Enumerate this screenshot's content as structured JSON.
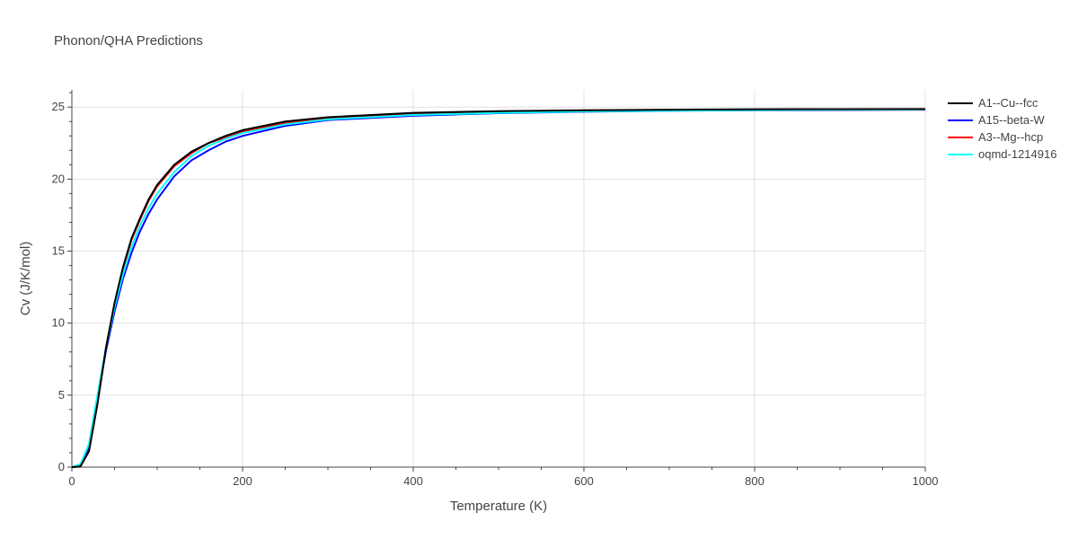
{
  "chart_data": {
    "type": "line",
    "title": "Phonon/QHA Predictions",
    "xlabel": "Temperature (K)",
    "ylabel": "Cv (J/K/mol)",
    "xlim": [
      0,
      1000
    ],
    "ylim": [
      0,
      26.2
    ],
    "xticks": [
      0,
      200,
      400,
      600,
      800,
      1000
    ],
    "yticks": [
      0,
      5,
      10,
      15,
      20,
      25
    ],
    "grid": true,
    "legend_position": "top-right",
    "series": [
      {
        "name": "A1--Cu--fcc",
        "color": "#000000",
        "x": [
          0,
          10,
          20,
          30,
          40,
          50,
          60,
          70,
          80,
          90,
          100,
          120,
          140,
          160,
          180,
          200,
          250,
          300,
          400,
          500,
          600,
          700,
          800,
          900,
          1000
        ],
        "y": [
          0,
          0.05,
          1.1,
          4.4,
          8.3,
          11.4,
          13.9,
          15.9,
          17.3,
          18.6,
          19.6,
          21.0,
          21.9,
          22.5,
          23.0,
          23.4,
          24.0,
          24.3,
          24.6,
          24.72,
          24.78,
          24.82,
          24.85,
          24.86,
          24.87
        ]
      },
      {
        "name": "A15--beta-W",
        "color": "#0000ff",
        "x": [
          0,
          10,
          20,
          30,
          40,
          50,
          60,
          70,
          80,
          90,
          100,
          120,
          140,
          160,
          180,
          200,
          250,
          300,
          400,
          500,
          600,
          700,
          800,
          900,
          1000
        ],
        "y": [
          0,
          0.1,
          1.3,
          4.7,
          8.1,
          10.8,
          13.1,
          14.9,
          16.4,
          17.6,
          18.6,
          20.2,
          21.3,
          22.0,
          22.6,
          23.0,
          23.7,
          24.1,
          24.4,
          24.58,
          24.68,
          24.74,
          24.78,
          24.8,
          24.82
        ]
      },
      {
        "name": "A3--Mg--hcp",
        "color": "#ff0000",
        "x": [
          0,
          10,
          20,
          30,
          40,
          50,
          60,
          70,
          80,
          90,
          100,
          120,
          140,
          160,
          180,
          200,
          250,
          300,
          400,
          500,
          600,
          700,
          800,
          900,
          1000
        ],
        "y": [
          0,
          0.05,
          1.1,
          4.4,
          8.3,
          11.3,
          13.8,
          15.8,
          17.2,
          18.5,
          19.5,
          20.9,
          21.8,
          22.5,
          22.9,
          23.3,
          23.9,
          24.2,
          24.55,
          24.7,
          24.77,
          24.8,
          24.83,
          24.85,
          24.86
        ]
      },
      {
        "name": "oqmd-1214916",
        "color": "#00ffff",
        "x": [
          0,
          10,
          20,
          30,
          40,
          50,
          60,
          70,
          80,
          90,
          100,
          120,
          140,
          160,
          180,
          200,
          250,
          300,
          400,
          500,
          600,
          700,
          800,
          900,
          1000
        ],
        "y": [
          0,
          0.2,
          1.6,
          5.0,
          8.3,
          11.1,
          13.4,
          15.3,
          16.8,
          18.0,
          19.0,
          20.5,
          21.6,
          22.3,
          22.8,
          23.2,
          23.8,
          24.15,
          24.45,
          24.6,
          24.7,
          24.75,
          24.8,
          24.82,
          24.84
        ]
      }
    ]
  }
}
